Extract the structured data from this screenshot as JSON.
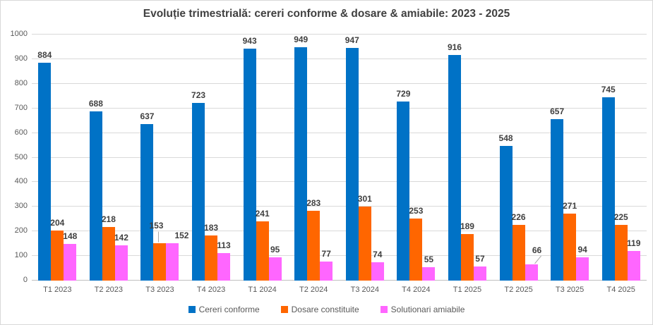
{
  "chart_data": {
    "type": "bar",
    "title": "Evoluție trimestrială: cereri conforme & dosare & amiabile: 2023 - 2025",
    "categories": [
      "T1 2023",
      "T2 2023",
      "T3 2023",
      "T4 2023",
      "T1 2024",
      "T2 2024",
      "T3 2024",
      "T4 2024",
      "T1 2025",
      "T2 2025",
      "T3 2025",
      "T4 2025"
    ],
    "series": [
      {
        "name": "Cereri conforme",
        "color": "#0072C6",
        "values": [
          884,
          688,
          637,
          723,
          943,
          949,
          947,
          729,
          916,
          548,
          657,
          745
        ]
      },
      {
        "name": "Dosare constituite",
        "color": "#FF6600",
        "values": [
          204,
          218,
          153,
          183,
          241,
          283,
          301,
          253,
          189,
          226,
          271,
          225
        ]
      },
      {
        "name": "Solutionari amiabile",
        "color": "#FF66FF",
        "values": [
          148,
          142,
          152,
          113,
          95,
          77,
          74,
          55,
          57,
          66,
          94,
          119
        ]
      }
    ],
    "xlabel": "",
    "ylabel": "",
    "ylim": [
      0,
      1000
    ],
    "ytick_step": 100,
    "yticks": [
      0,
      100,
      200,
      300,
      400,
      500,
      600,
      700,
      800,
      900,
      1000
    ],
    "grid": true,
    "data_labels": true,
    "legend_position": "bottom",
    "label_leader_lines": [
      {
        "category": "T3 2023",
        "series": "Dosare constituite",
        "value": 153,
        "direction": "vertical"
      },
      {
        "category": "T2 2025",
        "series": "Solutionari amiabile",
        "value": 66,
        "direction": "diagonal"
      }
    ]
  },
  "colors": {
    "title_text": "#404040",
    "data_label_text": "#404040",
    "axis_text": "#595959",
    "gridline": "#d9d9d9",
    "axis_line": "#bfbfbf",
    "leader_line": "#a6a6a6",
    "border": "#d9d9d9"
  }
}
